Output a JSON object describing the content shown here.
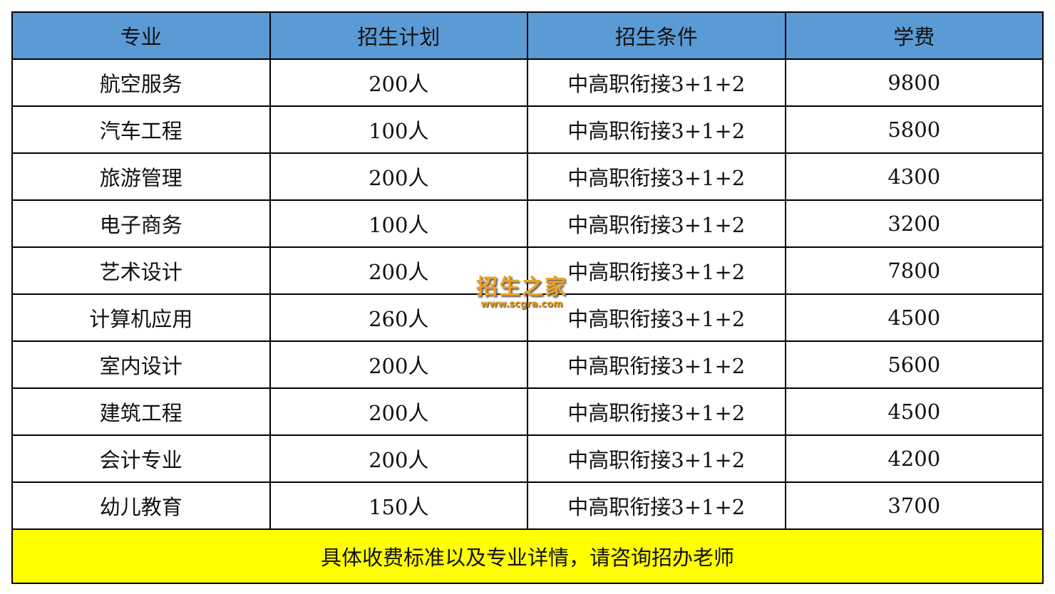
{
  "headers": [
    "专业",
    "招生计划",
    "招生条件",
    "学费"
  ],
  "rows": [
    [
      "航空服务",
      "200人",
      "中高职衔接3+1+2",
      "9800"
    ],
    [
      "汽车工程",
      "100人",
      "中高职衔接3+1+2",
      "5800"
    ],
    [
      "旅游管理",
      "200人",
      "中高职衔接3+1+2",
      "4300"
    ],
    [
      "电子商务",
      "100人",
      "中高职衔接3+1+2",
      "3200"
    ],
    [
      "艺术设计",
      "200人",
      "中高职衔接3+1+2",
      "7800"
    ],
    [
      "计算机应用",
      "260人",
      "中高职衔接3+1+2",
      "4500"
    ],
    [
      "室内设计",
      "200人",
      "中高职衔接3+1+2",
      "5600"
    ],
    [
      "建筑工程",
      "200人",
      "中高职衔接3+1+2",
      "4500"
    ],
    [
      "会计专业",
      "200人",
      "中高职衔接3+1+2",
      "4200"
    ],
    [
      "幼儿教育",
      "150人",
      "中高职衔接3+1+2",
      "3700"
    ]
  ],
  "footer": "具体收费标准以及专业详情，请咨询招办老师",
  "watermark": {
    "title": "招生之家",
    "url": "www.scgra.com"
  },
  "colors": {
    "header_bg": "#5b9bd5",
    "footer_bg": "#ffff00"
  }
}
